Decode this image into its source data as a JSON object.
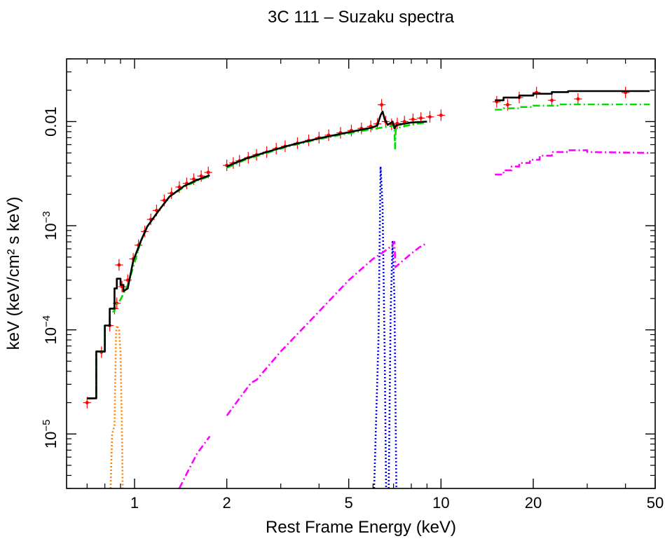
{
  "chart_data": {
    "type": "scatter",
    "title": "3C 111 – Suzaku spectra",
    "xlabel": "Rest Frame Energy (keV)",
    "ylabel": "keV (keV/cm² s keV)",
    "xscale": "log",
    "yscale": "log",
    "xlim": [
      0.6,
      50
    ],
    "ylim": [
      3e-06,
      0.04
    ],
    "grid": false,
    "x_ticks": [
      {
        "value": 1,
        "label": "1"
      },
      {
        "value": 2,
        "label": "2"
      },
      {
        "value": 5,
        "label": "5"
      },
      {
        "value": 10,
        "label": "10"
      },
      {
        "value": 20,
        "label": "20"
      },
      {
        "value": 50,
        "label": "50"
      }
    ],
    "y_ticks": [
      {
        "value": 1e-05,
        "base": "10",
        "exp": "−5"
      },
      {
        "value": 0.0001,
        "base": "10",
        "exp": "−4"
      },
      {
        "value": 0.001,
        "base": "10",
        "exp": "−3"
      },
      {
        "value": 0.01,
        "label": "0.01"
      }
    ],
    "series": [
      {
        "role": "data",
        "color": "#ff0000",
        "style": "points-with-errorbars",
        "points": [
          [
            0.7,
            2e-05
          ],
          [
            0.78,
            6.1e-05
          ],
          [
            0.83,
            0.00011
          ],
          [
            0.86,
            0.00016
          ],
          [
            0.875,
            0.00018
          ],
          [
            0.89,
            0.00042
          ],
          [
            0.91,
            0.00026
          ],
          [
            0.95,
            0.0003
          ],
          [
            0.99,
            0.00048
          ],
          [
            1.03,
            0.00065
          ],
          [
            1.08,
            0.00088
          ],
          [
            1.13,
            0.00115
          ],
          [
            1.18,
            0.0014
          ],
          [
            1.25,
            0.00175
          ],
          [
            1.32,
            0.00205
          ],
          [
            1.4,
            0.00235
          ],
          [
            1.48,
            0.00255
          ],
          [
            1.56,
            0.0028
          ],
          [
            1.65,
            0.003
          ],
          [
            1.74,
            0.00325
          ],
          [
            2.0,
            0.0038
          ],
          [
            2.1,
            0.004
          ],
          [
            2.2,
            0.0042
          ],
          [
            2.35,
            0.0045
          ],
          [
            2.5,
            0.0048
          ],
          [
            2.7,
            0.0051
          ],
          [
            2.9,
            0.0055
          ],
          [
            3.1,
            0.0058
          ],
          [
            3.4,
            0.0062
          ],
          [
            3.7,
            0.0066
          ],
          [
            4.0,
            0.007
          ],
          [
            4.3,
            0.0074
          ],
          [
            4.7,
            0.0078
          ],
          [
            5.1,
            0.0082
          ],
          [
            5.5,
            0.0086
          ],
          [
            5.9,
            0.009
          ],
          [
            6.2,
            0.0095
          ],
          [
            6.4,
            0.0145
          ],
          [
            6.6,
            0.01
          ],
          [
            6.9,
            0.0094
          ],
          [
            7.2,
            0.0096
          ],
          [
            7.6,
            0.01
          ],
          [
            8.1,
            0.0105
          ],
          [
            8.6,
            0.0108
          ],
          [
            9.2,
            0.0111
          ],
          [
            10.0,
            0.0115
          ],
          [
            15.2,
            0.0155
          ],
          [
            16.5,
            0.0145
          ],
          [
            18.0,
            0.017
          ],
          [
            20.5,
            0.019
          ],
          [
            23.0,
            0.016
          ],
          [
            28.0,
            0.0165
          ],
          [
            40.0,
            0.019
          ]
        ]
      },
      {
        "role": "total-model",
        "color": "#000000",
        "style": "step-solid",
        "segments": [
          [
            [
              0.7,
              2.2e-05
            ],
            [
              0.75,
              2.2e-05
            ],
            [
              0.75,
              6.2e-05
            ],
            [
              0.8,
              6.2e-05
            ],
            [
              0.8,
              0.00011
            ],
            [
              0.83,
              0.00011
            ],
            [
              0.83,
              0.00016
            ],
            [
              0.86,
              0.00016
            ],
            [
              0.86,
              0.00025
            ],
            [
              0.875,
              0.00025
            ],
            [
              0.875,
              0.00031
            ],
            [
              0.9,
              0.00031
            ],
            [
              0.9,
              0.00027
            ],
            [
              0.92,
              0.00027
            ],
            [
              0.92,
              0.000235
            ],
            [
              0.95,
              0.00025
            ],
            [
              0.99,
              0.00046
            ],
            [
              1.05,
              0.00072
            ],
            [
              1.1,
              0.00098
            ],
            [
              1.2,
              0.0014
            ],
            [
              1.3,
              0.0019
            ],
            [
              1.45,
              0.0024
            ],
            [
              1.6,
              0.00275
            ],
            [
              1.76,
              0.00305
            ]
          ],
          [
            [
              2.0,
              0.0037
            ],
            [
              2.3,
              0.0044
            ],
            [
              2.7,
              0.0051
            ],
            [
              3.2,
              0.0059
            ],
            [
              4.0,
              0.0069
            ],
            [
              5.0,
              0.0079
            ],
            [
              6.0,
              0.0088
            ],
            [
              6.2,
              0.0092
            ],
            [
              6.35,
              0.0115
            ],
            [
              6.45,
              0.0125
            ],
            [
              6.55,
              0.0105
            ],
            [
              6.7,
              0.0093
            ],
            [
              6.85,
              0.0097
            ],
            [
              6.95,
              0.01
            ],
            [
              7.05,
              0.0086
            ],
            [
              7.15,
              0.0092
            ],
            [
              7.5,
              0.0095
            ],
            [
              8.0,
              0.0098
            ],
            [
              9.0,
              0.01
            ]
          ],
          [
            [
              15.0,
              0.016
            ],
            [
              16.0,
              0.016
            ],
            [
              16.0,
              0.017
            ],
            [
              18.0,
              0.017
            ],
            [
              18.0,
              0.0178
            ],
            [
              20.0,
              0.0178
            ],
            [
              20.0,
              0.0185
            ],
            [
              23.0,
              0.0185
            ],
            [
              23.0,
              0.0192
            ],
            [
              26.0,
              0.0192
            ],
            [
              26.0,
              0.0196
            ],
            [
              48.0,
              0.0196
            ]
          ]
        ]
      },
      {
        "role": "continuum-component",
        "color": "#00e000",
        "style": "dash-dot",
        "segments": [
          [
            [
              0.7,
              2.2e-05
            ],
            [
              0.75,
              2.2e-05
            ],
            [
              0.75,
              6.2e-05
            ],
            [
              0.8,
              6.2e-05
            ],
            [
              0.8,
              0.00011
            ],
            [
              0.83,
              0.00011
            ],
            [
              0.83,
              0.00015
            ],
            [
              0.86,
              0.00015
            ],
            [
              0.86,
              0.000165
            ],
            [
              0.9,
              0.000195
            ],
            [
              0.95,
              0.00027
            ],
            [
              1.0,
              0.00044
            ],
            [
              1.05,
              0.00072
            ],
            [
              1.1,
              0.00098
            ],
            [
              1.2,
              0.0014
            ],
            [
              1.3,
              0.0019
            ],
            [
              1.45,
              0.00235
            ],
            [
              1.6,
              0.0027
            ],
            [
              1.76,
              0.003
            ]
          ],
          [
            [
              2.0,
              0.0036
            ],
            [
              2.3,
              0.0043
            ],
            [
              2.7,
              0.005
            ],
            [
              3.2,
              0.0058
            ],
            [
              4.0,
              0.0068
            ],
            [
              5.0,
              0.0077
            ],
            [
              6.0,
              0.0085
            ],
            [
              6.8,
              0.009
            ],
            [
              7.05,
              0.0092
            ],
            [
              7.08,
              0.0055
            ],
            [
              7.12,
              0.0085
            ],
            [
              7.5,
              0.009
            ],
            [
              8.5,
              0.0096
            ],
            [
              9.0,
              0.0098
            ]
          ],
          [
            [
              15.0,
              0.013
            ],
            [
              16.0,
              0.013
            ],
            [
              16.0,
              0.0134
            ],
            [
              18.0,
              0.0134
            ],
            [
              18.0,
              0.0138
            ],
            [
              20.0,
              0.0138
            ],
            [
              20.0,
              0.0142
            ],
            [
              24.0,
              0.0142
            ],
            [
              24.0,
              0.0146
            ],
            [
              48.0,
              0.0146
            ]
          ]
        ]
      },
      {
        "role": "reflection-component",
        "color": "#ff00ff",
        "style": "dash-dot",
        "segments": [
          [
            [
              1.4,
              3e-06
            ],
            [
              1.5,
              4.5e-06
            ],
            [
              1.6,
              6.5e-06
            ],
            [
              1.76,
              9.5e-06
            ]
          ],
          [
            [
              2.0,
              1.5e-05
            ],
            [
              2.2,
              2.2e-05
            ],
            [
              2.4,
              3.1e-05
            ],
            [
              2.5,
              3.3e-05
            ],
            [
              3.0,
              6.2e-05
            ],
            [
              4.0,
              0.00015
            ],
            [
              5.0,
              0.0003
            ],
            [
              6.0,
              0.00048
            ],
            [
              6.5,
              0.00056
            ],
            [
              6.9,
              0.00064
            ],
            [
              7.05,
              0.0007
            ],
            [
              7.1,
              0.0004
            ],
            [
              7.5,
              0.00046
            ],
            [
              8.0,
              0.00054
            ],
            [
              8.5,
              0.00062
            ],
            [
              9.0,
              0.00068
            ]
          ],
          [
            [
              15.0,
              0.0031
            ],
            [
              16.0,
              0.0031
            ],
            [
              16.0,
              0.0034
            ],
            [
              17.0,
              0.0034
            ],
            [
              17.0,
              0.0037
            ],
            [
              18.0,
              0.0037
            ],
            [
              18.0,
              0.004
            ],
            [
              19.5,
              0.004
            ],
            [
              19.5,
              0.0043
            ],
            [
              21.0,
              0.0043
            ],
            [
              21.0,
              0.0047
            ],
            [
              23.0,
              0.0047
            ],
            [
              23.0,
              0.0051
            ],
            [
              26.0,
              0.0051
            ],
            [
              26.0,
              0.0053
            ],
            [
              30.0,
              0.0053
            ],
            [
              30.0,
              0.0051
            ],
            [
              48.0,
              0.005
            ]
          ]
        ]
      },
      {
        "role": "line-component",
        "color": "#0000ff",
        "style": "dotted",
        "segments": [
          [
            [
              6.05,
              3e-06
            ],
            [
              6.25,
              8e-05
            ],
            [
              6.35,
              0.0037
            ],
            [
              6.45,
              0.0015
            ],
            [
              6.55,
              6e-05
            ],
            [
              6.62,
              3e-06
            ]
          ],
          [
            [
              6.75,
              3e-06
            ],
            [
              6.85,
              0.00015
            ],
            [
              6.95,
              0.0007
            ],
            [
              7.05,
              0.0002
            ],
            [
              7.15,
              3e-06
            ]
          ]
        ]
      },
      {
        "role": "soft-line-component",
        "color": "#ff8000",
        "style": "dotted",
        "segments": [
          [
            [
              0.835,
              3e-06
            ],
            [
              0.845,
              1e-05
            ],
            [
              0.86,
              1.2e-05
            ],
            [
              0.87,
              9e-05
            ],
            [
              0.875,
              0.00011
            ],
            [
              0.89,
              0.0001
            ],
            [
              0.9,
              6e-05
            ],
            [
              0.91,
              1e-05
            ],
            [
              0.915,
              3e-06
            ]
          ]
        ]
      }
    ]
  }
}
